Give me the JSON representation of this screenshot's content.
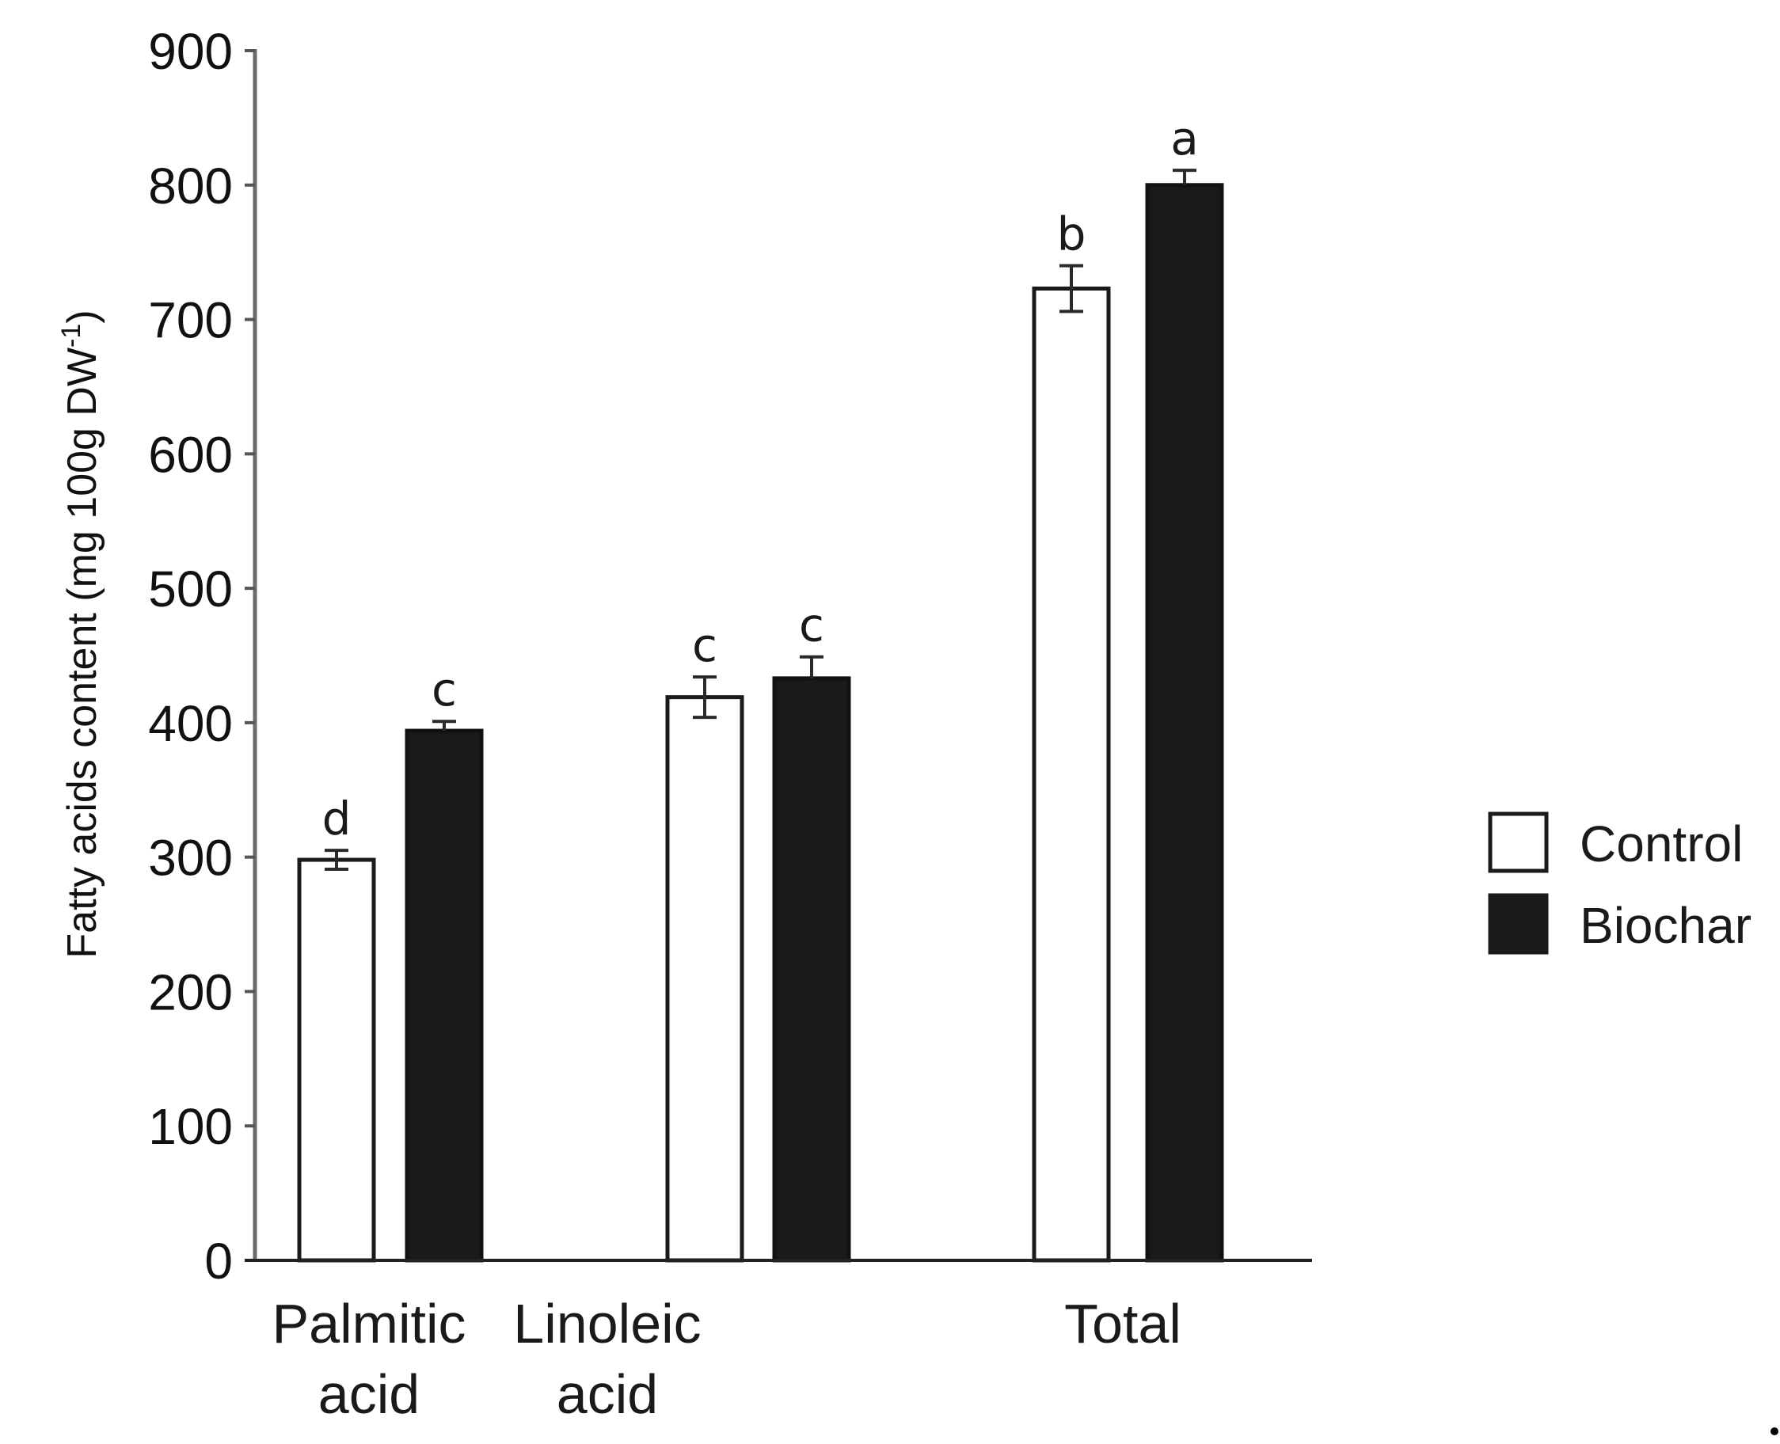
{
  "chart_data": {
    "type": "bar",
    "title": "",
    "xlabel": "",
    "ylabel": "Fatty acids content (mg 100g DW-1)",
    "ylabel_parts": {
      "main": "Fatty acids content (mg 100g DW",
      "superscript": "-1",
      "close": ")"
    },
    "ylim": [
      0,
      900
    ],
    "yticks": [
      0,
      100,
      200,
      300,
      400,
      500,
      600,
      700,
      800,
      900
    ],
    "grid": false,
    "legend_position": "right",
    "categories": [
      "Palmitic acid",
      "Linoleic acid",
      "Total"
    ],
    "category_lines": [
      [
        "Palmitic",
        "acid"
      ],
      [
        "Linoleic",
        "acid"
      ],
      [
        "Total"
      ]
    ],
    "series": [
      {
        "name": "Control",
        "fill": "#ffffff",
        "stroke": "#1a1a1a",
        "values": [
          298,
          419,
          723
        ],
        "errors": [
          7,
          15,
          17
        ],
        "significance": [
          "d",
          "c",
          "b"
        ]
      },
      {
        "name": "Biochar",
        "fill": "#1c1a19",
        "stroke": "#111111",
        "values": [
          394,
          433,
          800
        ],
        "errors": [
          7,
          16,
          11
        ],
        "significance": [
          "c",
          "c",
          "a"
        ]
      }
    ]
  },
  "legend": {
    "items": [
      {
        "label": "Control",
        "fill": "#ffffff"
      },
      {
        "label": "Biochar",
        "fill": "#1c1a19"
      }
    ]
  }
}
